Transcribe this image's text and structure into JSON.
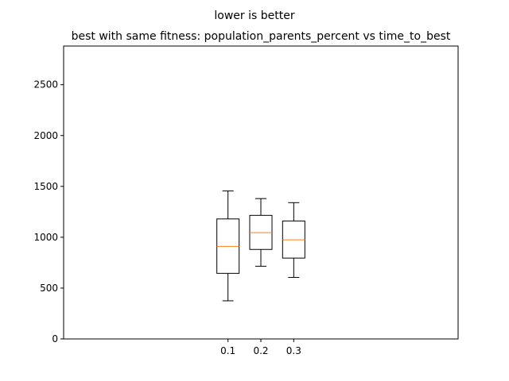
{
  "chart_data": {
    "type": "boxplot",
    "suptitle": "lower is better",
    "title": "best with same fitness: population_parents_percent vs time_to_best",
    "xlabel": "",
    "ylabel": "",
    "categories": [
      "0.1",
      "0.2",
      "0.3"
    ],
    "boxes": [
      {
        "label": "0.1",
        "whisker_low": 375,
        "q1": 645,
        "median": 910,
        "q3": 1180,
        "whisker_high": 1455
      },
      {
        "label": "0.2",
        "whisker_low": 715,
        "q1": 880,
        "median": 1045,
        "q3": 1215,
        "whisker_high": 1380
      },
      {
        "label": "0.3",
        "whisker_low": 605,
        "q1": 795,
        "median": 975,
        "q3": 1160,
        "whisker_high": 1340
      }
    ],
    "x_positions": [
      0.1,
      0.2,
      0.3
    ],
    "xlim": [
      -0.4,
      0.8
    ],
    "ylim": [
      0,
      2880
    ],
    "yticks": [
      0,
      500,
      1000,
      1500,
      2000,
      2500
    ],
    "grid": false,
    "legend": "none",
    "colors": {
      "box": "#000000",
      "median": "#ff7f0e",
      "axes": "#000000",
      "background": "#ffffff"
    }
  }
}
